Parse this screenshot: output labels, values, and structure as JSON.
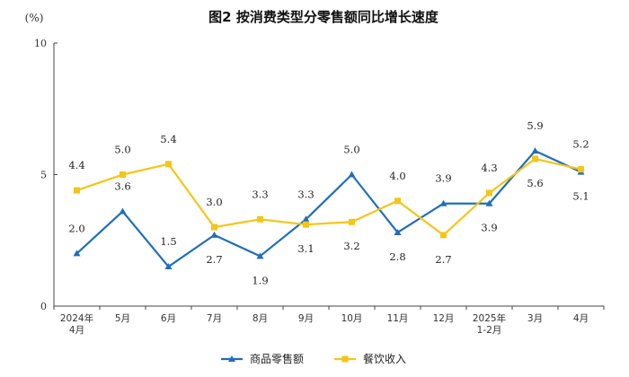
{
  "chart_data": {
    "type": "line",
    "title": "图2  按消费类型分零售额同比增长速度",
    "unit": "(%)",
    "ylim": [
      0,
      10
    ],
    "yticks": [
      0,
      5,
      10
    ],
    "grid": false,
    "legend_position": "bottom",
    "categories": [
      [
        "2024年",
        "4月"
      ],
      [
        "5月"
      ],
      [
        "6月"
      ],
      [
        "7月"
      ],
      [
        "8月"
      ],
      [
        "9月"
      ],
      [
        "10月"
      ],
      [
        "11月"
      ],
      [
        "12月"
      ],
      [
        "2025年",
        "1-2月"
      ],
      [
        "3月"
      ],
      [
        "4月"
      ]
    ],
    "series": [
      {
        "name": "商品零售额",
        "color": "#1f6fba",
        "marker": "triangle",
        "values": [
          2.0,
          3.6,
          1.5,
          2.7,
          1.9,
          3.3,
          5.0,
          2.8,
          3.9,
          3.9,
          5.9,
          5.1
        ],
        "label_text": [
          "2.0",
          "3.6",
          "1.5",
          "2.7",
          "1.9",
          "3.3",
          "5.0",
          "2.8",
          "3.9",
          "3.9",
          "5.9",
          "5.1"
        ],
        "label_pos": [
          "above",
          "above",
          "above",
          "below",
          "below",
          "above",
          "above",
          "below",
          "above",
          "below",
          "above",
          "below"
        ]
      },
      {
        "name": "餐饮收入",
        "color": "#f5c518",
        "marker": "square",
        "values": [
          4.4,
          5.0,
          5.4,
          3.0,
          3.3,
          3.1,
          3.2,
          4.0,
          2.7,
          4.3,
          5.6,
          5.2
        ],
        "label_text": [
          "4.4",
          "5.0",
          "5.4",
          "3.0",
          "3.3",
          "3.1",
          "3.2",
          "4.0",
          "2.7",
          "4.3",
          "5.6",
          "5.2"
        ],
        "label_pos": [
          "above",
          "above",
          "above",
          "above",
          "above",
          "below",
          "below",
          "above",
          "below",
          "above",
          "below",
          "above"
        ]
      }
    ]
  }
}
